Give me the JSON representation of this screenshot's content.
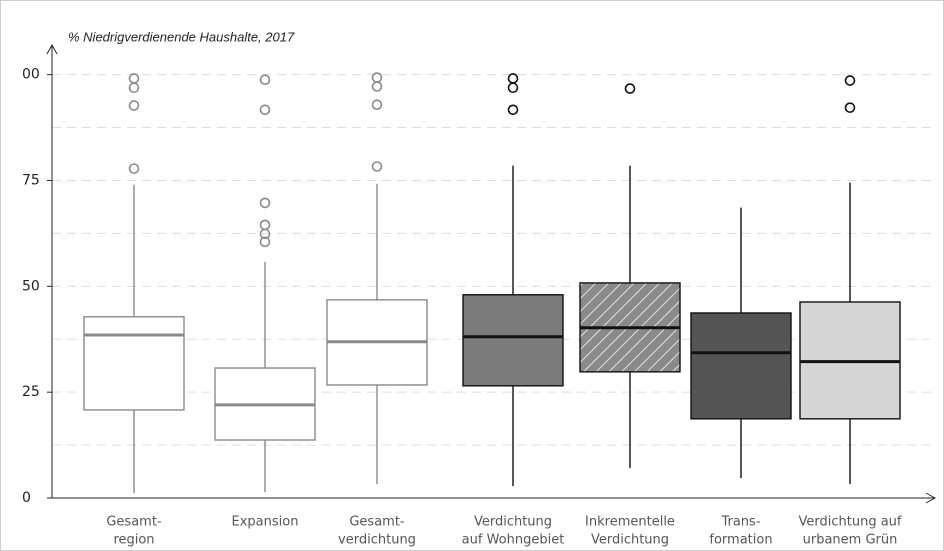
{
  "chart_data": {
    "type": "box",
    "title": "% Niedrigverdienende Haushalte, 2017",
    "categories": [
      [
        "Gesamt-",
        "region"
      ],
      [
        "Expansion"
      ],
      [
        "Gesamt-",
        "verdichtung"
      ],
      [
        "Verdichtung",
        "auf Wohngebiet"
      ],
      [
        "Inkrementelle",
        "Verdichtung"
      ],
      [
        "Trans-",
        "formation"
      ],
      [
        "Verdichtung auf",
        "urbanem Grün"
      ]
    ],
    "boxes": [
      {
        "low": 1.2,
        "q1": 20.8,
        "median": 38.5,
        "q3": 42.8,
        "high": 74,
        "outliers": [
          77.8,
          92.7,
          96.9,
          99.1
        ],
        "fill": "#ffffff",
        "stroke": "#8a8a8a",
        "hatch": false
      },
      {
        "low": 1.4,
        "q1": 13.7,
        "median": 22,
        "q3": 30.7,
        "high": 55.8,
        "outliers": [
          60.5,
          62.4,
          64.5,
          69.7,
          91.7,
          98.8
        ],
        "fill": "#ffffff",
        "stroke": "#8a8a8a",
        "hatch": false
      },
      {
        "low": 3.3,
        "q1": 26.7,
        "median": 36.9,
        "q3": 46.8,
        "high": 74.2,
        "outliers": [
          78.3,
          92.9,
          97.2,
          99.3
        ],
        "fill": "#ffffff",
        "stroke": "#8a8a8a",
        "hatch": false
      },
      {
        "low": 2.8,
        "q1": 26.5,
        "median": 38.1,
        "q3": 48,
        "high": 78.5,
        "outliers": [
          91.7,
          96.9,
          99.1
        ],
        "fill": "#7a7a7a",
        "stroke": "#111111",
        "hatch": false
      },
      {
        "low": 7.1,
        "q1": 29.8,
        "median": 40.2,
        "q3": 50.8,
        "high": 78.5,
        "outliers": [
          96.7
        ],
        "fill": "#8a8a8a",
        "stroke": "#111111",
        "hatch": true
      },
      {
        "low": 4.7,
        "q1": 18.7,
        "median": 34.3,
        "q3": 43.7,
        "high": 68.6,
        "outliers": [],
        "fill": "#555555",
        "stroke": "#111111",
        "hatch": false
      },
      {
        "low": 3.3,
        "q1": 18.7,
        "median": 32.2,
        "q3": 46.3,
        "high": 74.5,
        "outliers": [
          92.2,
          98.6
        ],
        "fill": "#d6d6d6",
        "stroke": "#111111",
        "hatch": false
      }
    ],
    "ylim": [
      0,
      107
    ],
    "yticks": [
      0,
      25,
      50,
      75,
      {
        "value": 100,
        "label": "00"
      }
    ],
    "minor_gridlines": [
      12.5,
      37.5,
      62.5,
      87.5
    ],
    "grid": true
  }
}
